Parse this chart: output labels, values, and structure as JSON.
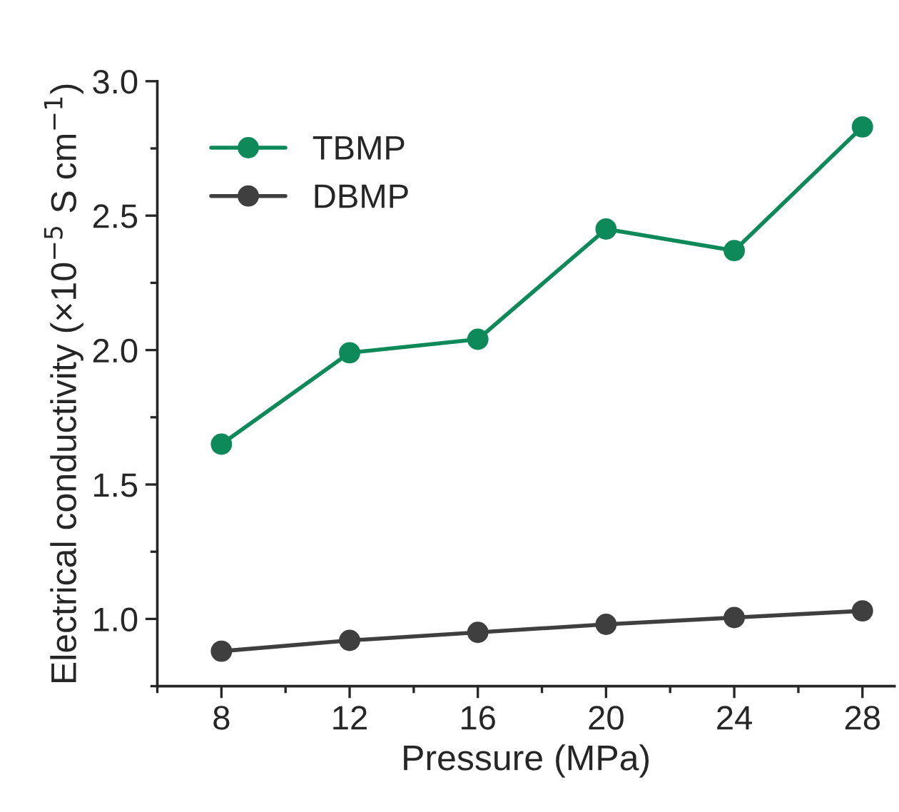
{
  "chart_data": {
    "type": "line",
    "xlabel": "Pressure (MPa)",
    "ylabel": "Electrical conductivity (×10$^{−5}$ S cm$^{−1}$)",
    "x": [
      8,
      12,
      16,
      20,
      24,
      28
    ],
    "series": [
      {
        "name": "TBMP",
        "color": "#0e8a5a",
        "values": [
          1.65,
          1.99,
          2.04,
          2.45,
          2.37,
          2.83
        ]
      },
      {
        "name": "DBMP",
        "color": "#3f3f3f",
        "values": [
          0.88,
          0.92,
          0.95,
          0.98,
          1.005,
          1.03
        ]
      }
    ],
    "xlim": [
      6,
      29
    ],
    "xticks": [
      8,
      12,
      16,
      20,
      24,
      28
    ],
    "ylim": [
      0.75,
      3.0
    ],
    "yticks": [
      {
        "value": 1,
        "label": "1.0"
      },
      1.5,
      {
        "value": 2,
        "label": "2.0"
      },
      2.5,
      {
        "value": 3,
        "label": "3.0"
      }
    ],
    "marker": "circle",
    "line_style": "solid",
    "legend": "top left",
    "grid": false
  }
}
